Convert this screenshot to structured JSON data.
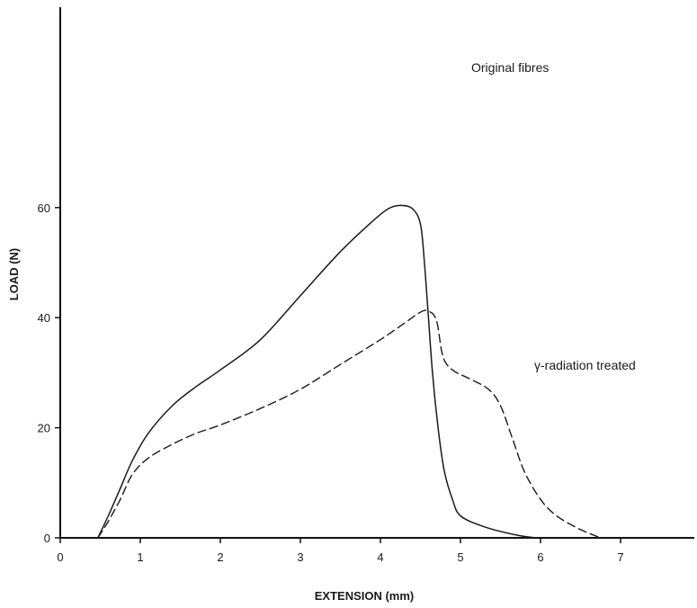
{
  "chart_data": {
    "type": "line",
    "title": "",
    "xlabel": "EXTENSION (mm)",
    "ylabel": "LOAD (N)",
    "xlim": [
      0,
      8
    ],
    "ylim": [
      0,
      64
    ],
    "grid": false,
    "legend": "none",
    "x_ticks": [
      "0",
      "1",
      "2",
      "3",
      "4",
      "5",
      "6",
      "7"
    ],
    "y_ticks": [
      "0",
      "20",
      "40",
      "60"
    ],
    "series": [
      {
        "name": "Original fibres",
        "style": "solid",
        "color": "#1a1a1a",
        "points": [
          [
            0.47,
            0
          ],
          [
            0.6,
            4
          ],
          [
            0.75,
            9
          ],
          [
            0.9,
            14
          ],
          [
            1.1,
            19
          ],
          [
            1.4,
            24
          ],
          [
            1.7,
            27.5
          ],
          [
            2.0,
            30.5
          ],
          [
            2.5,
            36
          ],
          [
            3.0,
            44
          ],
          [
            3.5,
            52
          ],
          [
            3.9,
            57.5
          ],
          [
            4.1,
            59.8
          ],
          [
            4.25,
            60.4
          ],
          [
            4.4,
            59.8
          ],
          [
            4.5,
            57
          ],
          [
            4.55,
            50
          ],
          [
            4.6,
            40
          ],
          [
            4.65,
            30
          ],
          [
            4.72,
            20
          ],
          [
            4.8,
            12
          ],
          [
            4.9,
            7
          ],
          [
            5.0,
            4
          ],
          [
            5.3,
            2
          ],
          [
            5.7,
            0.5
          ],
          [
            5.95,
            0
          ]
        ]
      },
      {
        "name": "γ-radiation treated",
        "style": "dashed",
        "color": "#1a1a1a",
        "points": [
          [
            0.47,
            0
          ],
          [
            0.6,
            3
          ],
          [
            0.75,
            7
          ],
          [
            0.9,
            11.5
          ],
          [
            1.1,
            14.5
          ],
          [
            1.4,
            17
          ],
          [
            1.7,
            19
          ],
          [
            2.0,
            20.5
          ],
          [
            2.5,
            23.5
          ],
          [
            3.0,
            27
          ],
          [
            3.5,
            31.5
          ],
          [
            4.0,
            36
          ],
          [
            4.3,
            39
          ],
          [
            4.5,
            41
          ],
          [
            4.6,
            41.2
          ],
          [
            4.7,
            39.5
          ],
          [
            4.78,
            33
          ],
          [
            4.9,
            30.5
          ],
          [
            5.1,
            29
          ],
          [
            5.35,
            27
          ],
          [
            5.5,
            24
          ],
          [
            5.65,
            18
          ],
          [
            5.8,
            12
          ],
          [
            6.0,
            7
          ],
          [
            6.2,
            4
          ],
          [
            6.5,
            1.5
          ],
          [
            6.75,
            0
          ]
        ]
      }
    ],
    "annotations": [
      {
        "text": "Original fibres",
        "series": 0
      },
      {
        "text": "γ-radiation treated",
        "series": 1
      }
    ]
  }
}
